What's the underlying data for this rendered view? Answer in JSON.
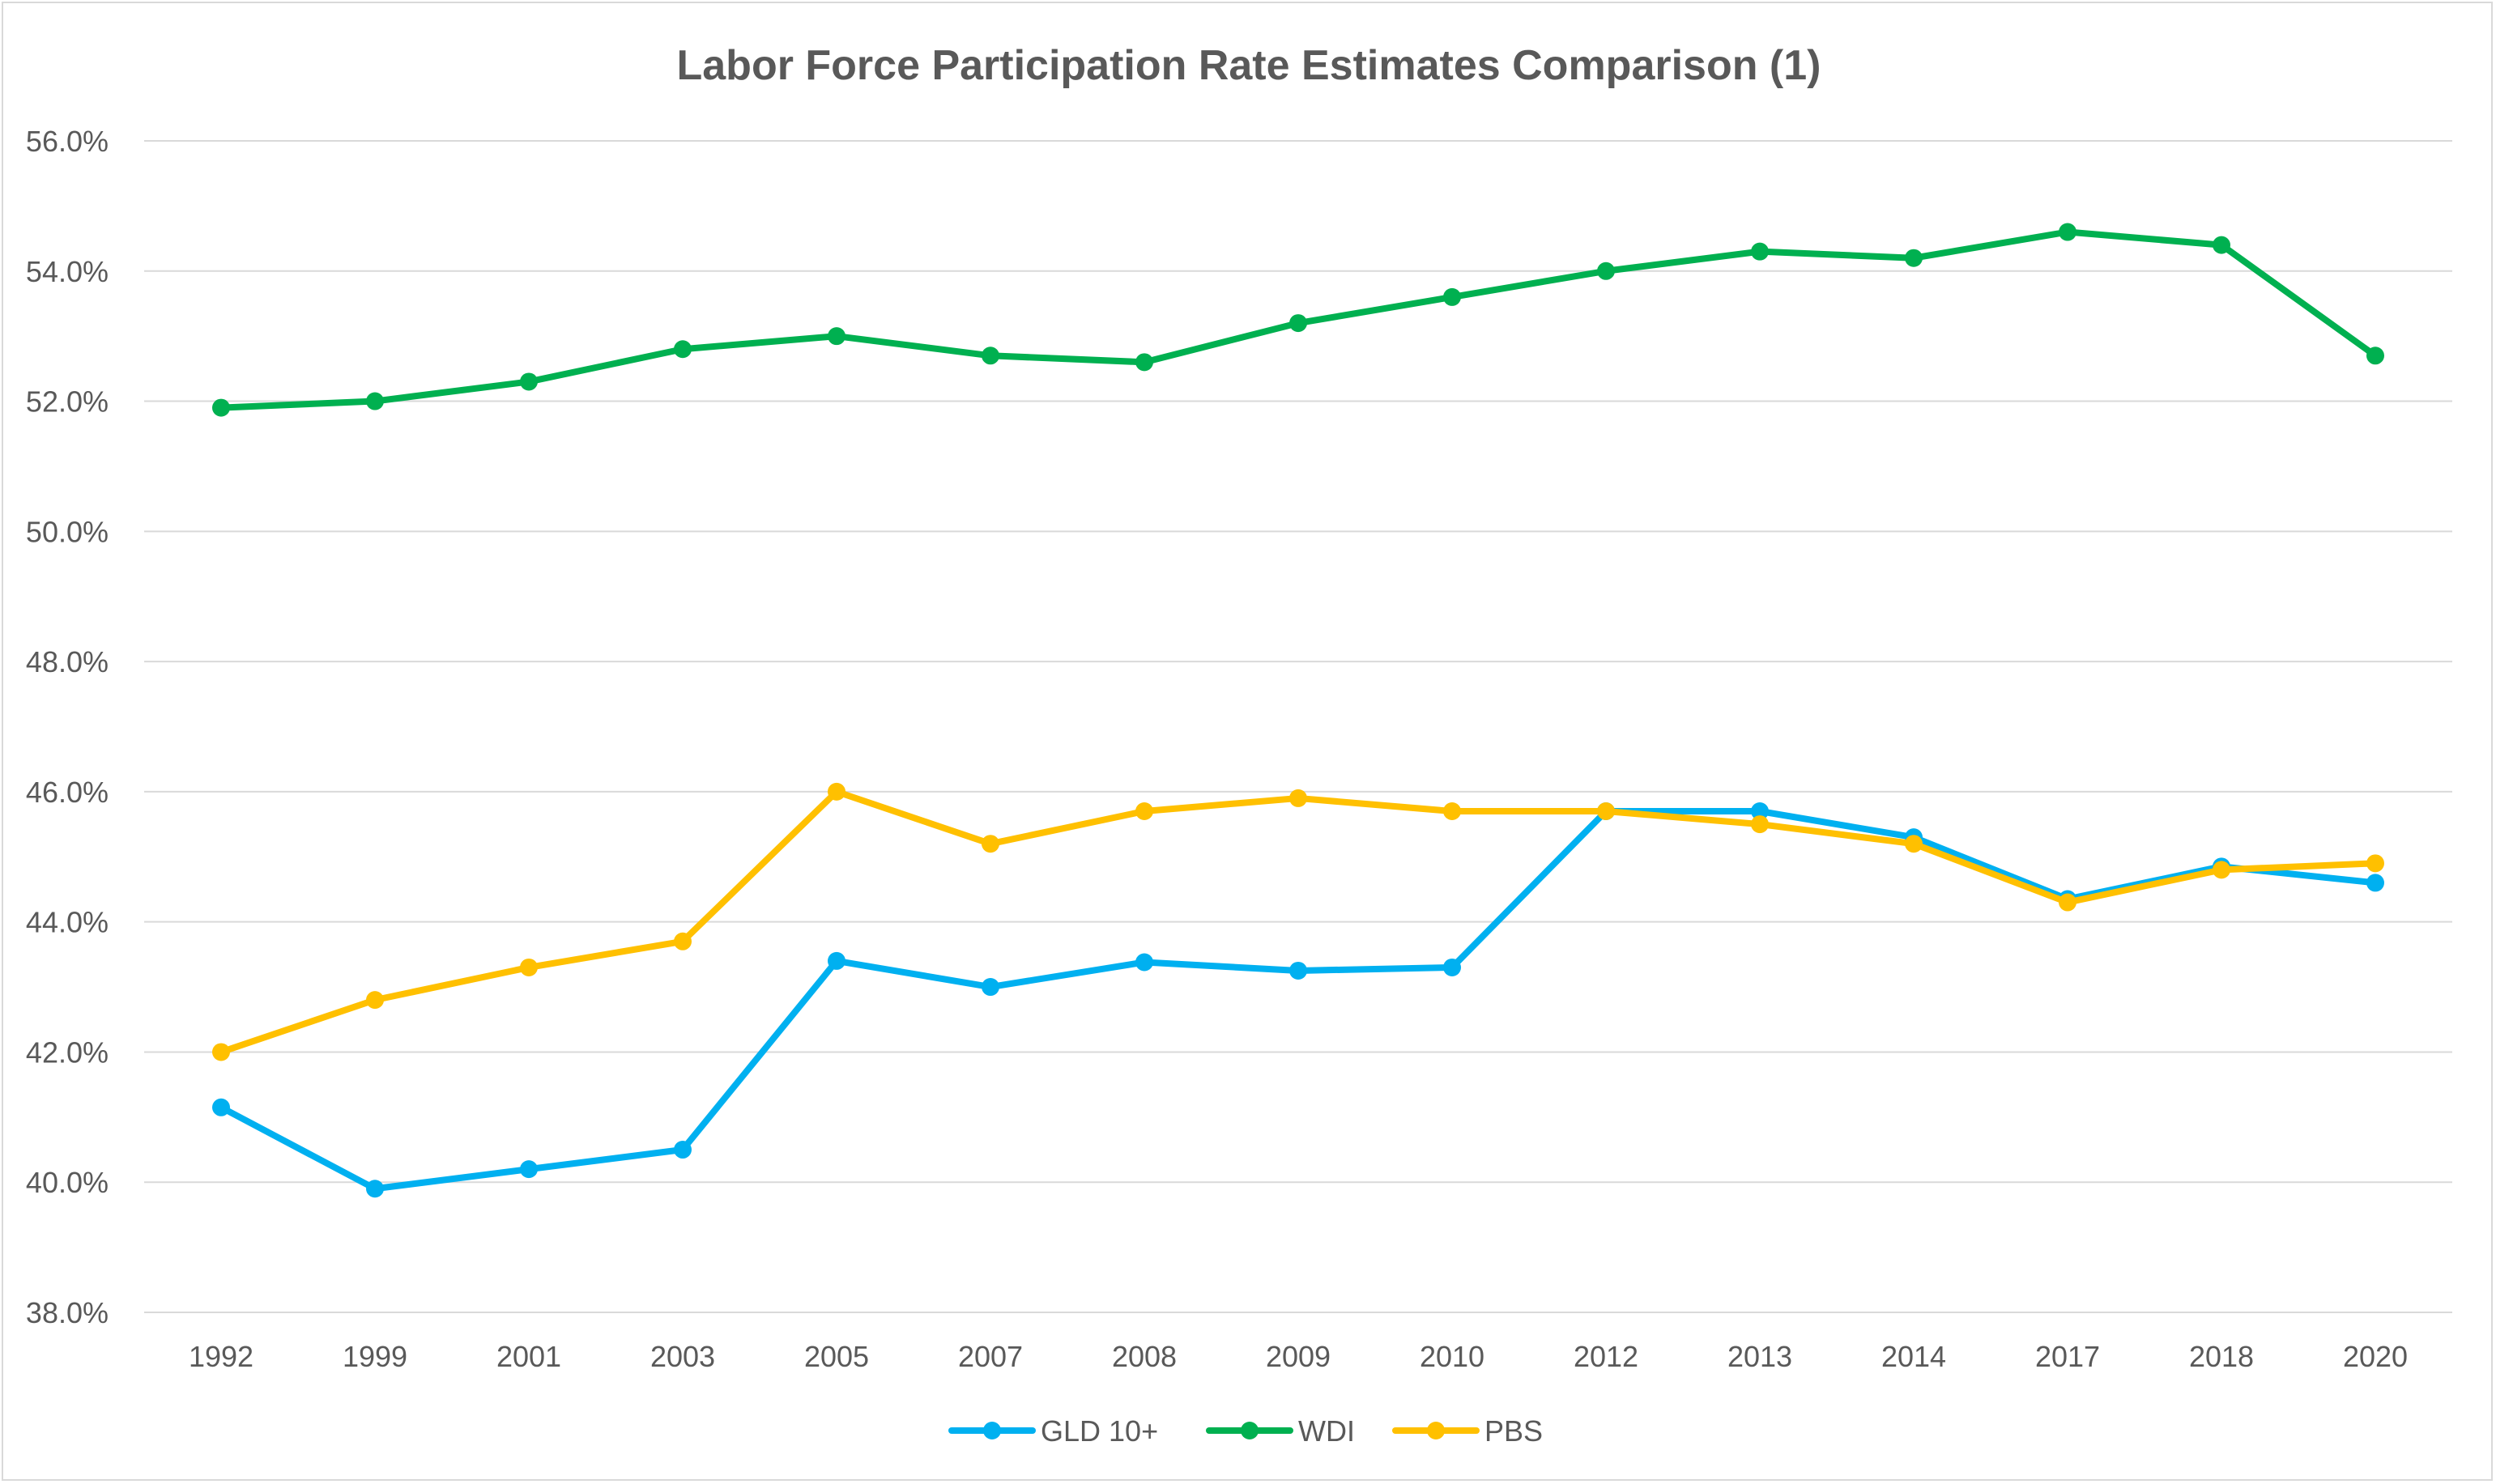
{
  "chart_data": {
    "type": "line",
    "title": "Labor Force Participation Rate Estimates Comparison (1)",
    "xlabel": "",
    "ylabel": "",
    "categories": [
      "1992",
      "1999",
      "2001",
      "2003",
      "2005",
      "2007",
      "2008",
      "2009",
      "2010",
      "2012",
      "2013",
      "2014",
      "2017",
      "2018",
      "2020"
    ],
    "ylim": [
      38,
      56
    ],
    "yticks": [
      38,
      40,
      42,
      44,
      46,
      48,
      50,
      52,
      54,
      56
    ],
    "ytick_labels": [
      "38.0%",
      "40.0%",
      "42.0%",
      "44.0%",
      "46.0%",
      "48.0%",
      "50.0%",
      "52.0%",
      "54.0%",
      "56.0%"
    ],
    "grid": "horizontal",
    "legend_position": "bottom",
    "series": [
      {
        "name": "GLD 10+",
        "color": "#00b0f0",
        "values": [
          41.15,
          39.9,
          40.2,
          40.5,
          43.4,
          43.0,
          43.38,
          43.25,
          43.3,
          45.7,
          45.7,
          45.3,
          44.35,
          44.85,
          44.6
        ]
      },
      {
        "name": "WDI",
        "color": "#00b050",
        "values": [
          51.9,
          52.0,
          52.3,
          52.8,
          53.0,
          52.7,
          52.6,
          53.2,
          53.6,
          54.0,
          54.3,
          54.2,
          54.6,
          54.4,
          52.7
        ]
      },
      {
        "name": "PBS",
        "color": "#ffc000",
        "values": [
          42.0,
          42.8,
          43.3,
          43.7,
          46.0,
          45.2,
          45.7,
          45.9,
          45.7,
          45.7,
          45.5,
          45.2,
          44.3,
          44.8,
          44.9
        ]
      }
    ]
  }
}
